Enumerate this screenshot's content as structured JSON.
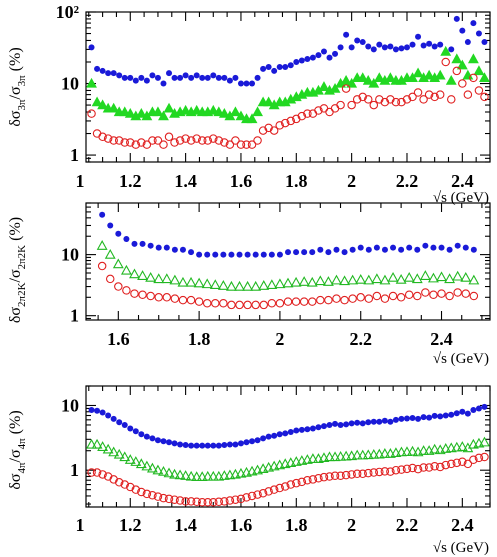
{
  "chart_data": [
    {
      "type": "scatter",
      "ylabel": "δσ3π/σ3π (%)",
      "ylabel_main": "δσ",
      "ylabel_sub1": "3π",
      "ylabel_mid": "/σ",
      "ylabel_sub2": "3π",
      "ylabel_unit": "(%)",
      "xlabel": "",
      "yscale": "log",
      "xlim": [
        1.04,
        2.5
      ],
      "ylim": [
        0.8,
        100
      ],
      "xticks": [
        "1",
        "1.2",
        "1.4",
        "1.6",
        "1.8",
        "2",
        "2.2",
        "2.4"
      ],
      "yticks": [
        "1",
        "10",
        "10²"
      ],
      "x": [
        1.06,
        1.08,
        1.1,
        1.12,
        1.14,
        1.16,
        1.18,
        1.2,
        1.22,
        1.24,
        1.26,
        1.28,
        1.3,
        1.32,
        1.34,
        1.36,
        1.38,
        1.4,
        1.42,
        1.44,
        1.46,
        1.48,
        1.5,
        1.52,
        1.54,
        1.56,
        1.58,
        1.6,
        1.62,
        1.64,
        1.66,
        1.68,
        1.7,
        1.72,
        1.74,
        1.76,
        1.78,
        1.8,
        1.82,
        1.84,
        1.86,
        1.88,
        1.9,
        1.92,
        1.94,
        1.96,
        1.98,
        2.0,
        2.02,
        2.04,
        2.06,
        2.08,
        2.1,
        2.12,
        2.14,
        2.16,
        2.18,
        2.2,
        2.22,
        2.24,
        2.26,
        2.28,
        2.3,
        2.32,
        2.34,
        2.36,
        2.38,
        2.4,
        2.42,
        2.44,
        2.46,
        2.48
      ],
      "series": [
        {
          "marker": "filled-circle",
          "color": "#1a1ad8",
          "values": [
            32,
            16,
            15,
            14,
            14,
            13,
            12,
            12,
            11,
            12,
            11,
            13,
            12,
            10,
            14,
            12,
            12,
            13,
            12,
            13,
            12,
            12,
            13,
            12,
            12,
            11,
            12,
            10,
            10,
            10,
            12,
            16,
            17,
            15,
            17,
            17,
            18,
            20,
            21,
            22,
            23,
            25,
            28,
            23,
            26,
            32,
            48,
            32,
            40,
            38,
            33,
            30,
            35,
            32,
            33,
            30,
            31,
            32,
            35,
            45,
            34,
            36,
            33,
            35,
            110,
            30,
            80,
            55,
            38,
            70,
            50,
            38
          ]
        },
        {
          "marker": "filled-triangle",
          "color": "#22d822",
          "values": [
            10,
            5.5,
            5.0,
            4.5,
            4.5,
            4.0,
            4.0,
            3.8,
            3.5,
            3.8,
            3.5,
            4.0,
            4.0,
            3.5,
            4.5,
            3.8,
            4.0,
            4.2,
            4.0,
            4.2,
            4.0,
            4.0,
            4.2,
            4.0,
            3.8,
            3.5,
            4.0,
            3.5,
            3.2,
            3.2,
            4.0,
            5.5,
            5.5,
            5.0,
            5.5,
            5.5,
            6.0,
            6.5,
            7.0,
            7.5,
            7.5,
            8.0,
            9.0,
            8.0,
            8.5,
            10,
            11,
            10,
            12,
            12,
            11,
            10,
            12,
            11,
            12,
            11,
            11,
            12,
            12,
            14,
            12,
            13,
            12,
            13,
            28,
            11,
            22,
            18,
            13,
            22,
            15,
            12
          ]
        },
        {
          "marker": "open-circle",
          "color": "#e02020",
          "values": [
            3.8,
            2.0,
            1.8,
            1.7,
            1.6,
            1.6,
            1.5,
            1.5,
            1.4,
            1.5,
            1.4,
            1.6,
            1.6,
            1.4,
            1.8,
            1.5,
            1.6,
            1.7,
            1.6,
            1.7,
            1.6,
            1.6,
            1.7,
            1.6,
            1.5,
            1.4,
            1.6,
            1.4,
            1.4,
            1.4,
            1.6,
            2.2,
            2.4,
            2.2,
            2.6,
            2.8,
            3.0,
            3.2,
            3.5,
            3.8,
            3.8,
            4.2,
            4.5,
            4.0,
            4.5,
            5.0,
            8.5,
            5.0,
            6.0,
            6.5,
            6.0,
            5.0,
            6.0,
            5.5,
            6.0,
            5.5,
            5.5,
            6.0,
            6.5,
            7.5,
            6.0,
            7.0,
            6.5,
            7.0,
            20,
            6.0,
            15,
            10,
            7.0,
            12,
            8.0,
            6.5
          ]
        }
      ]
    },
    {
      "type": "scatter",
      "ylabel": "δσ2π2K/σ2π2K (%)",
      "ylabel_main": "δσ",
      "ylabel_sub1": "2π2K",
      "ylabel_mid": "/σ",
      "ylabel_sub2": "2π2K",
      "ylabel_unit": "(%)",
      "xlabel": "√s (GeV)",
      "yscale": "log",
      "xlim": [
        1.52,
        2.52
      ],
      "ylim": [
        0.85,
        70
      ],
      "xticks": [
        "1.6",
        "1.8",
        "2",
        "2.2",
        "2.4"
      ],
      "yticks": [
        "1",
        "10"
      ],
      "x": [
        1.56,
        1.58,
        1.6,
        1.62,
        1.64,
        1.66,
        1.68,
        1.7,
        1.72,
        1.74,
        1.76,
        1.78,
        1.8,
        1.82,
        1.84,
        1.86,
        1.88,
        1.9,
        1.92,
        1.94,
        1.96,
        1.98,
        2.0,
        2.02,
        2.04,
        2.06,
        2.08,
        2.1,
        2.12,
        2.14,
        2.16,
        2.18,
        2.2,
        2.22,
        2.24,
        2.26,
        2.28,
        2.3,
        2.32,
        2.34,
        2.36,
        2.38,
        2.4,
        2.42,
        2.44,
        2.46,
        2.48
      ],
      "series": [
        {
          "marker": "filled-circle",
          "color": "#1a1ad8",
          "values": [
            45,
            30,
            22,
            18,
            15,
            15,
            14,
            13,
            13,
            12,
            12,
            11,
            10,
            10,
            10,
            10,
            10,
            10,
            10,
            10,
            10,
            10,
            10,
            11,
            11,
            11,
            11,
            12,
            11,
            12,
            11,
            12,
            13,
            12,
            13,
            12,
            13,
            12,
            13,
            12,
            14,
            13,
            13,
            12,
            14,
            13,
            12
          ]
        },
        {
          "marker": "open-triangle",
          "color": "#22b822",
          "values": [
            14,
            10,
            7.0,
            5.5,
            4.8,
            4.5,
            4.2,
            4.0,
            4.0,
            3.8,
            3.5,
            3.5,
            3.4,
            3.3,
            3.2,
            3.1,
            3.0,
            3.0,
            3.0,
            3.0,
            3.1,
            3.2,
            3.3,
            3.4,
            3.5,
            3.6,
            3.5,
            3.7,
            3.6,
            3.8,
            3.7,
            3.8,
            3.9,
            3.8,
            4.0,
            3.8,
            4.2,
            3.9,
            4.2,
            4.0,
            4.5,
            4.1,
            4.3,
            4.0,
            4.4,
            4.2,
            3.8
          ]
        },
        {
          "marker": "open-circle",
          "color": "#e02020",
          "values": [
            6.5,
            4.0,
            3.0,
            2.6,
            2.3,
            2.2,
            2.1,
            2.0,
            2.0,
            1.9,
            1.8,
            1.8,
            1.7,
            1.6,
            1.6,
            1.6,
            1.5,
            1.5,
            1.5,
            1.5,
            1.5,
            1.6,
            1.6,
            1.7,
            1.7,
            1.7,
            1.7,
            1.8,
            1.8,
            1.9,
            1.8,
            1.9,
            2.0,
            1.9,
            2.1,
            1.9,
            2.1,
            2.0,
            2.2,
            2.1,
            2.4,
            2.2,
            2.3,
            2.1,
            2.4,
            2.3,
            2.1
          ]
        }
      ]
    },
    {
      "type": "scatter",
      "ylabel": "δσ4π/σ4π (%)",
      "ylabel_main": "δσ",
      "ylabel_sub1": "4π",
      "ylabel_mid": "/σ",
      "ylabel_sub2": "4π",
      "ylabel_unit": "(%)",
      "xlabel": "√s (GeV)",
      "yscale": "log",
      "xlim": [
        1.04,
        2.5
      ],
      "ylim": [
        0.27,
        20
      ],
      "xticks": [
        "1",
        "1.2",
        "1.4",
        "1.6",
        "1.8",
        "2",
        "2.2",
        "2.4"
      ],
      "yticks": [
        "1",
        "10"
      ],
      "x": [
        1.06,
        1.08,
        1.1,
        1.12,
        1.14,
        1.16,
        1.18,
        1.2,
        1.22,
        1.24,
        1.26,
        1.28,
        1.3,
        1.32,
        1.34,
        1.36,
        1.38,
        1.4,
        1.42,
        1.44,
        1.46,
        1.48,
        1.5,
        1.52,
        1.54,
        1.56,
        1.58,
        1.6,
        1.62,
        1.64,
        1.66,
        1.68,
        1.7,
        1.72,
        1.74,
        1.76,
        1.78,
        1.8,
        1.82,
        1.84,
        1.86,
        1.88,
        1.9,
        1.92,
        1.94,
        1.96,
        1.98,
        2.0,
        2.02,
        2.04,
        2.06,
        2.08,
        2.1,
        2.12,
        2.14,
        2.16,
        2.18,
        2.2,
        2.22,
        2.24,
        2.26,
        2.28,
        2.3,
        2.32,
        2.34,
        2.36,
        2.38,
        2.4,
        2.42,
        2.44,
        2.46,
        2.48
      ],
      "series": [
        {
          "marker": "filled-circle",
          "color": "#1a1ad8",
          "values": [
            8.5,
            8.3,
            7.8,
            7.0,
            6.2,
            5.5,
            5.0,
            4.4,
            4.0,
            3.6,
            3.3,
            3.1,
            2.9,
            2.8,
            2.7,
            2.6,
            2.5,
            2.45,
            2.4,
            2.4,
            2.4,
            2.4,
            2.4,
            2.4,
            2.45,
            2.5,
            2.5,
            2.6,
            2.7,
            2.8,
            2.9,
            3.1,
            3.3,
            3.4,
            3.6,
            3.7,
            3.9,
            4.1,
            4.2,
            4.3,
            4.4,
            4.6,
            4.8,
            5.0,
            5.2,
            5.0,
            5.1,
            5.3,
            5.4,
            5.3,
            5.5,
            5.6,
            5.6,
            5.8,
            5.6,
            6.0,
            6.2,
            6.3,
            6.4,
            6.2,
            6.6,
            6.5,
            6.9,
            6.8,
            7.0,
            7.2,
            7.6,
            8.0,
            7.5,
            8.5,
            9.0,
            9.5
          ]
        },
        {
          "marker": "open-triangle",
          "color": "#22b822",
          "values": [
            2.5,
            2.5,
            2.3,
            2.1,
            1.9,
            1.75,
            1.6,
            1.45,
            1.35,
            1.25,
            1.15,
            1.07,
            1.0,
            0.95,
            0.9,
            0.86,
            0.84,
            0.82,
            0.8,
            0.79,
            0.79,
            0.8,
            0.8,
            0.8,
            0.82,
            0.84,
            0.86,
            0.89,
            0.92,
            0.96,
            1.0,
            1.05,
            1.1,
            1.15,
            1.2,
            1.25,
            1.3,
            1.35,
            1.4,
            1.45,
            1.5,
            1.5,
            1.55,
            1.6,
            1.6,
            1.62,
            1.64,
            1.66,
            1.7,
            1.7,
            1.72,
            1.74,
            1.76,
            1.8,
            1.8,
            1.85,
            1.9,
            1.92,
            1.95,
            1.9,
            2.0,
            2.0,
            2.1,
            2.05,
            2.15,
            2.2,
            2.25,
            2.3,
            2.2,
            2.5,
            2.6,
            2.7
          ]
        },
        {
          "marker": "open-circle",
          "color": "#e02020",
          "values": [
            0.92,
            0.92,
            0.86,
            0.8,
            0.72,
            0.65,
            0.6,
            0.55,
            0.5,
            0.46,
            0.43,
            0.41,
            0.39,
            0.37,
            0.36,
            0.35,
            0.34,
            0.33,
            0.33,
            0.325,
            0.32,
            0.32,
            0.32,
            0.325,
            0.33,
            0.34,
            0.35,
            0.36,
            0.38,
            0.4,
            0.42,
            0.44,
            0.47,
            0.5,
            0.53,
            0.56,
            0.6,
            0.63,
            0.66,
            0.7,
            0.72,
            0.75,
            0.78,
            0.8,
            0.82,
            0.82,
            0.84,
            0.86,
            0.88,
            0.88,
            0.9,
            0.92,
            0.94,
            0.96,
            0.95,
            1.0,
            1.02,
            1.05,
            1.08,
            1.04,
            1.1,
            1.1,
            1.15,
            1.12,
            1.2,
            1.25,
            1.3,
            1.35,
            1.25,
            1.45,
            1.55,
            1.6
          ]
        }
      ]
    }
  ]
}
